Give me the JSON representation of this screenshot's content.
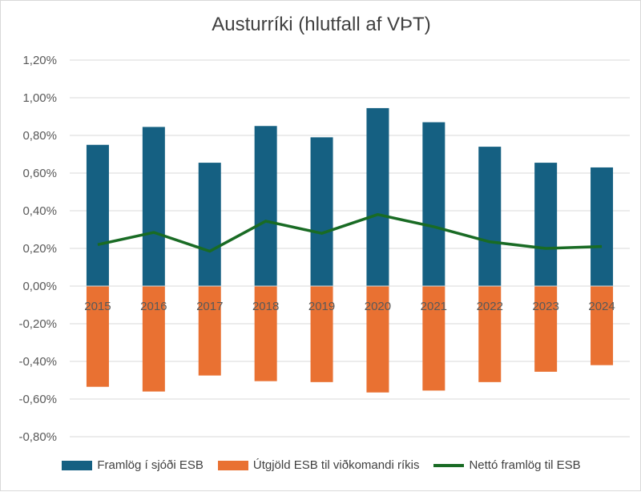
{
  "chart_data": {
    "type": "bar",
    "title": "Austurríki (hlutfall af VÞT)",
    "categories": [
      "2015",
      "2016",
      "2017",
      "2018",
      "2019",
      "2020",
      "2021",
      "2022",
      "2023",
      "2024"
    ],
    "series": [
      {
        "name": "Framlög í sjóði ESB",
        "type": "bar",
        "color": "#156082",
        "values": [
          0.75,
          0.845,
          0.655,
          0.85,
          0.79,
          0.945,
          0.87,
          0.74,
          0.655,
          0.63
        ]
      },
      {
        "name": "Útgjöld ESB til viðkomandi ríkis",
        "type": "bar",
        "color": "#e97132",
        "values": [
          -0.535,
          -0.56,
          -0.475,
          -0.505,
          -0.51,
          -0.565,
          -0.555,
          -0.51,
          -0.455,
          -0.42
        ]
      },
      {
        "name": "Nettó framlög til ESB",
        "type": "line",
        "color": "#196b24",
        "values": [
          0.22,
          0.285,
          0.185,
          0.345,
          0.28,
          0.38,
          0.315,
          0.235,
          0.2,
          0.21
        ]
      }
    ],
    "y_ticks": [
      "1,20%",
      "1,00%",
      "0,80%",
      "0,60%",
      "0,40%",
      "0,20%",
      "0,00%",
      "-0,20%",
      "-0,40%",
      "-0,60%",
      "-0,80%"
    ],
    "ylim": [
      -0.8,
      1.2
    ],
    "grid": true,
    "legend_position": "bottom"
  }
}
